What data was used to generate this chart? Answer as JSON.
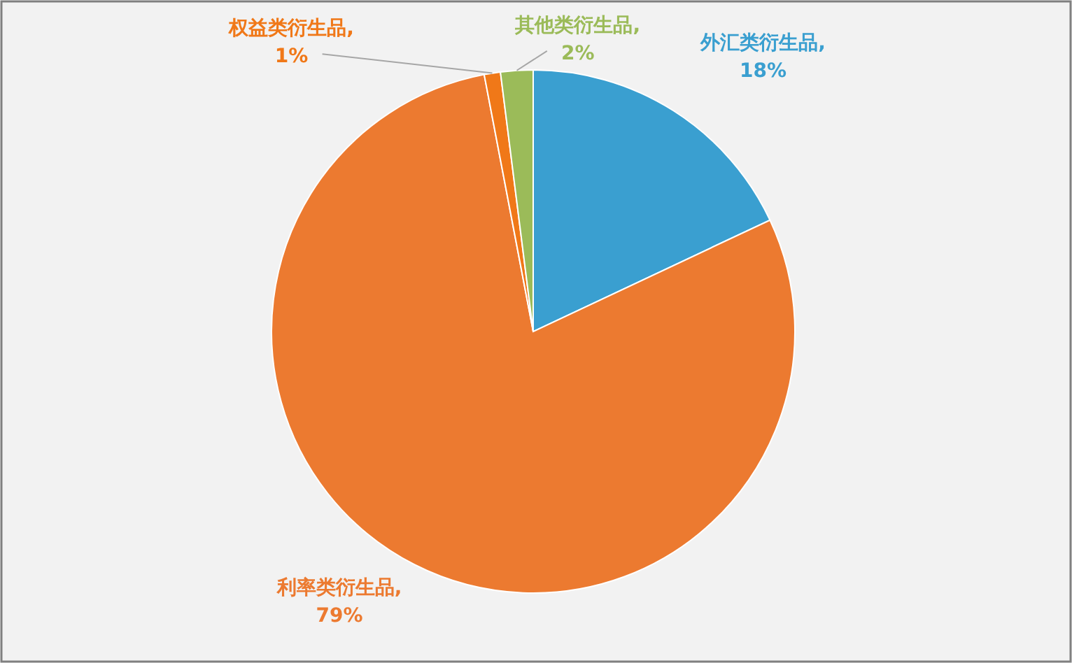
{
  "chart_data": {
    "type": "pie",
    "categories": [
      "外汇类衍生品",
      "利率类衍生品",
      "权益类衍生品",
      "其他类衍生品"
    ],
    "values": [
      18,
      79,
      1,
      2
    ],
    "value_labels": [
      ",\n18%",
      ",\n79%",
      ",\n1%",
      ",\n2%"
    ],
    "colors": [
      "#3a9fd0",
      "#ec7a30",
      "#f07818",
      "#9bbb59"
    ]
  }
}
